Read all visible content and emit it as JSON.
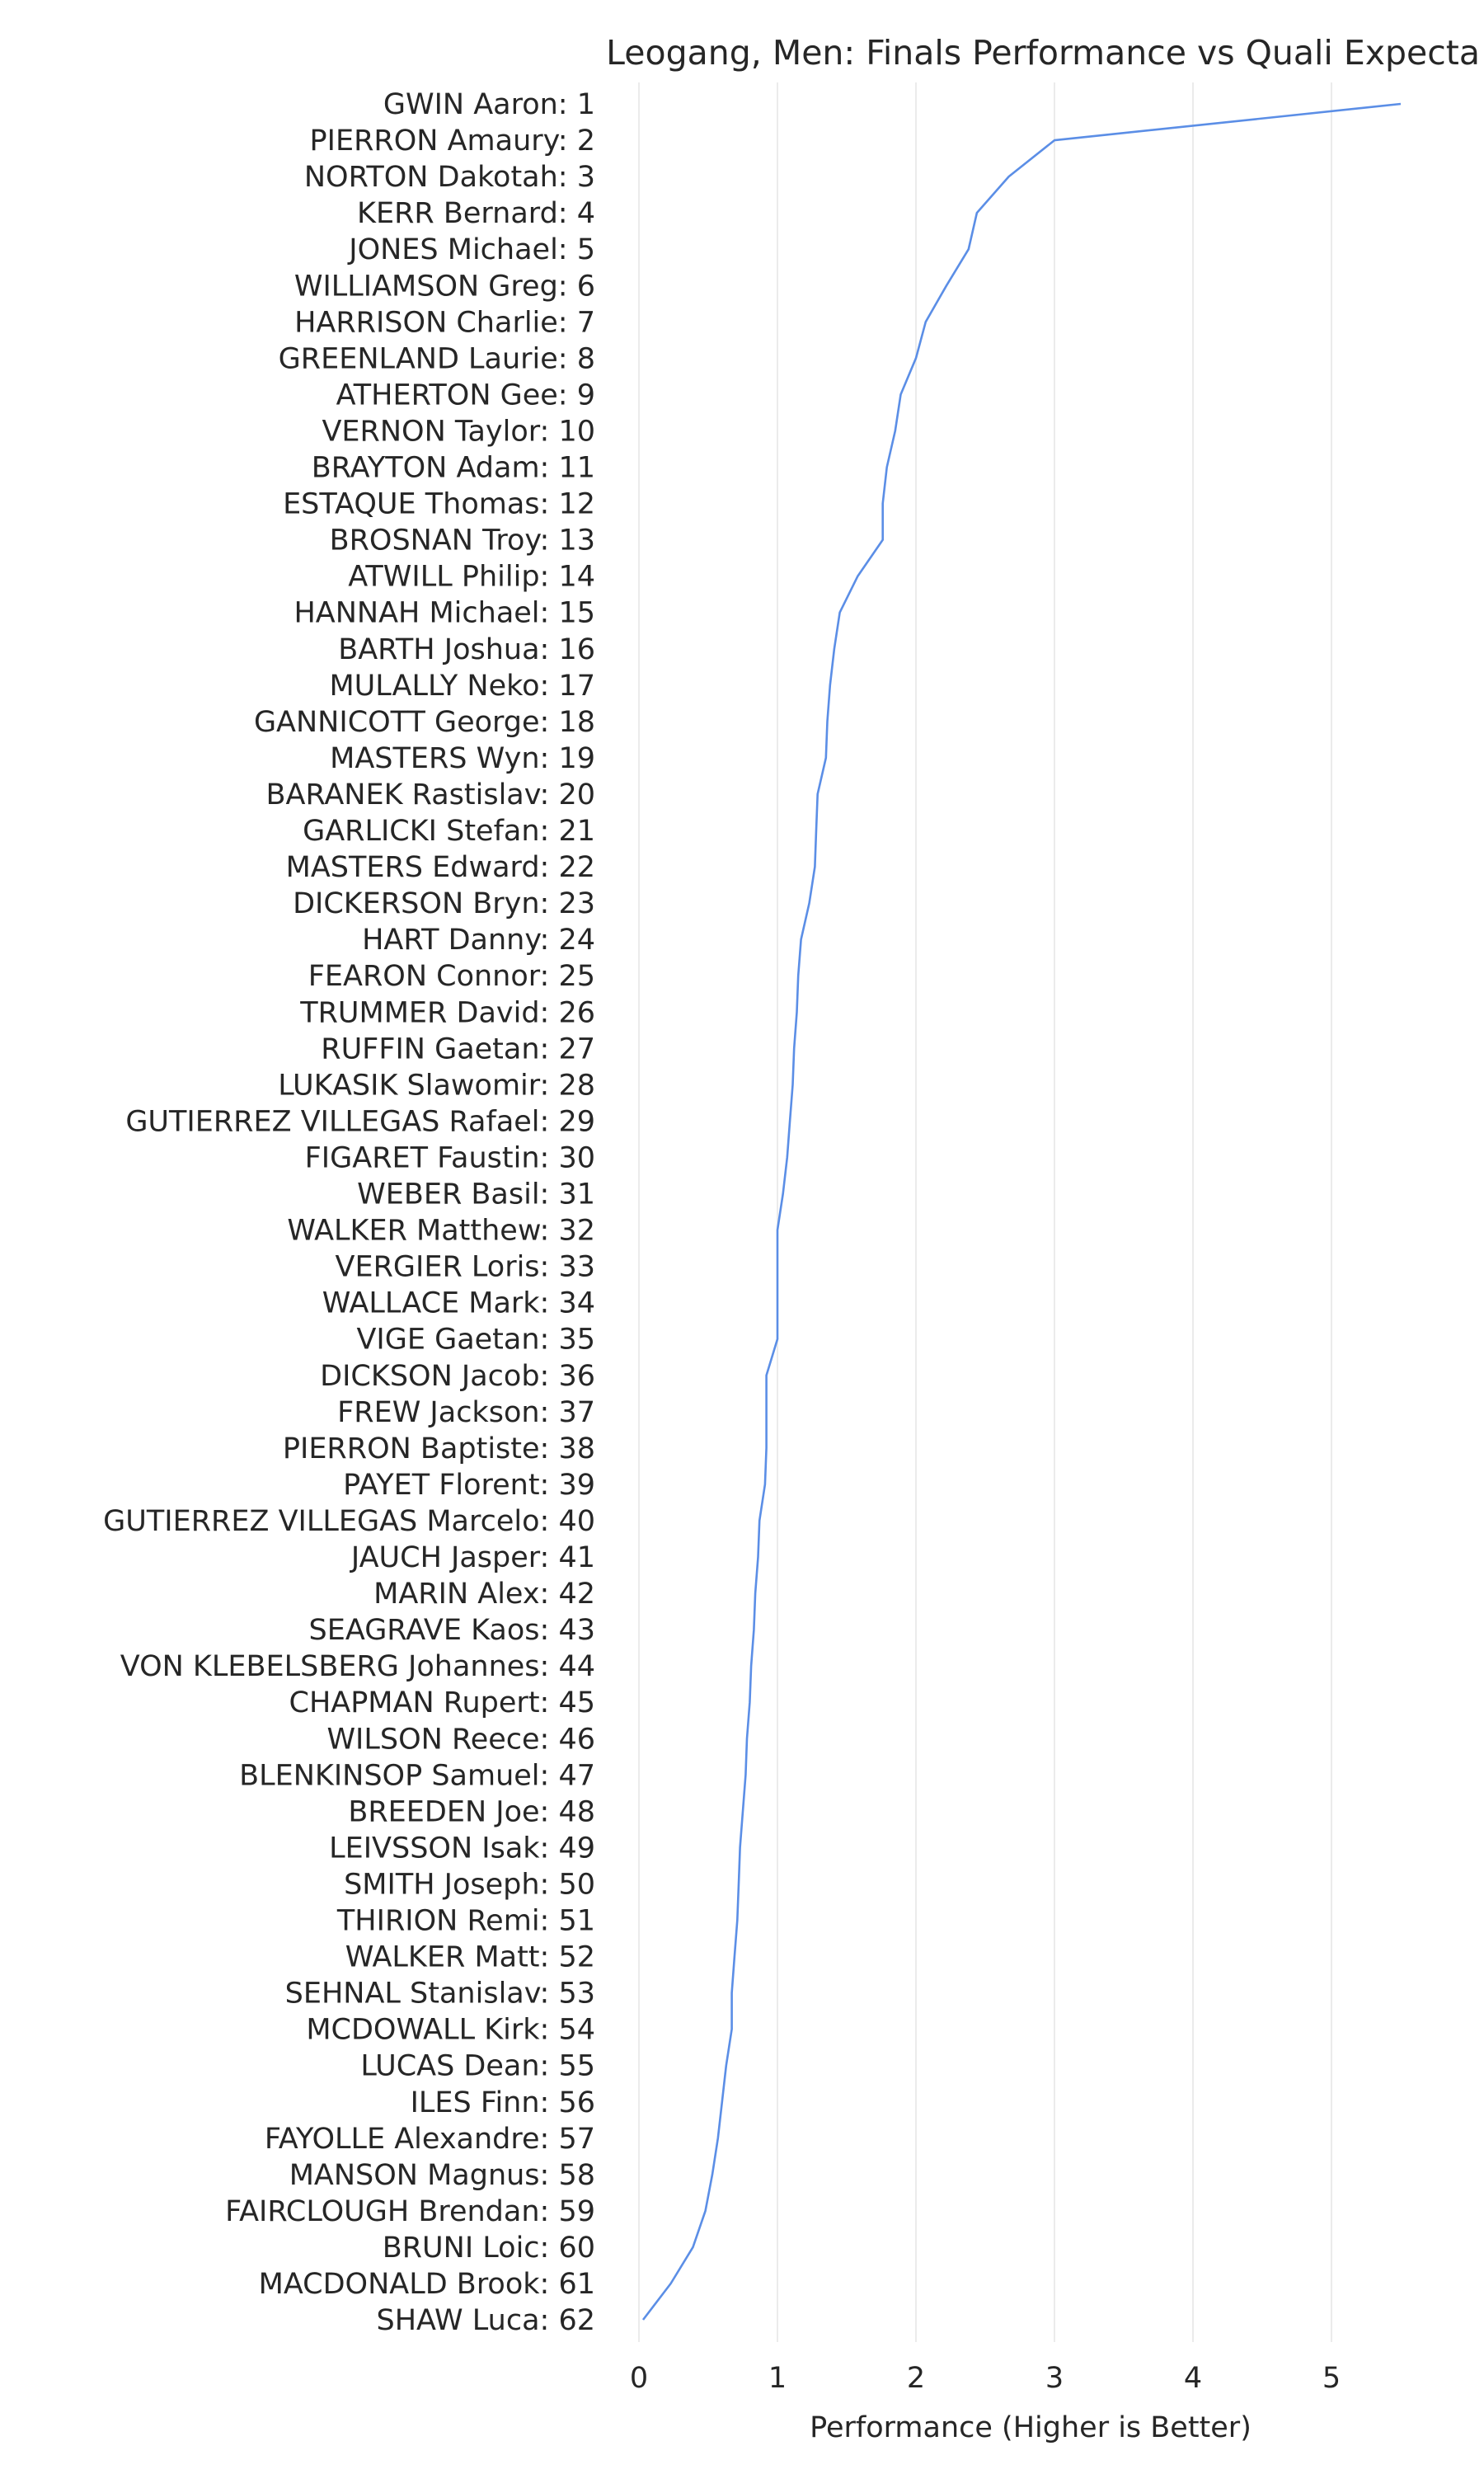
{
  "chart_data": {
    "type": "line",
    "title": "Leogang, Men: Finals Performance vs Quali Expecta",
    "xlabel": "Performance (Higher is Better)",
    "ylabel": "",
    "xlim": [
      0,
      6
    ],
    "x_ticks": [
      0,
      1,
      2,
      3,
      4,
      5
    ],
    "grid": true,
    "line_color": "#5b8ee6",
    "orientation": "horizontal",
    "categories": [
      "GWIN Aaron: 1",
      "PIERRON Amaury: 2",
      "NORTON Dakotah: 3",
      "KERR Bernard: 4",
      "JONES Michael: 5",
      "WILLIAMSON Greg: 6",
      "HARRISON Charlie: 7",
      "GREENLAND Laurie: 8",
      "ATHERTON Gee: 9",
      "VERNON Taylor: 10",
      "BRAYTON Adam: 11",
      "ESTAQUE Thomas: 12",
      "BROSNAN Troy: 13",
      "ATWILL Philip: 14",
      "HANNAH Michael: 15",
      "BARTH Joshua: 16",
      "MULALLY Neko: 17",
      "GANNICOTT George: 18",
      "MASTERS Wyn: 19",
      "BARANEK Rastislav: 20",
      "GARLICKI Stefan: 21",
      "MASTERS Edward: 22",
      "DICKERSON Bryn: 23",
      "HART Danny: 24",
      "FEARON Connor: 25",
      "TRUMMER David: 26",
      "RUFFIN Gaetan: 27",
      "LUKASIK Slawomir: 28",
      "GUTIERREZ VILLEGAS Rafael: 29",
      "FIGARET Faustin: 30",
      "WEBER Basil: 31",
      "WALKER Matthew: 32",
      "VERGIER Loris: 33",
      "WALLACE Mark: 34",
      "VIGE Gaetan: 35",
      "DICKSON Jacob: 36",
      "FREW Jackson: 37",
      "PIERRON Baptiste: 38",
      "PAYET Florent: 39",
      "GUTIERREZ VILLEGAS Marcelo: 40",
      "JAUCH Jasper: 41",
      "MARIN Alex: 42",
      "SEAGRAVE Kaos: 43",
      "VON KLEBELSBERG Johannes: 44",
      "CHAPMAN Rupert: 45",
      "WILSON Reece: 46",
      "BLENKINSOP Samuel: 47",
      "BREEDEN Joe: 48",
      "LEIVSSON Isak: 49",
      "SMITH Joseph: 50",
      "THIRION Remi: 51",
      "WALKER Matt: 52",
      "SEHNAL Stanislav: 53",
      "MCDOWALL Kirk: 54",
      "LUCAS Dean: 55",
      "ILES Finn: 56",
      "FAYOLLE Alexandre: 57",
      "MANSON Magnus: 58",
      "FAIRCLOUGH Brendan: 59",
      "BRUNI Loic: 60",
      "MACDONALD Brook: 61",
      "SHAW Luca: 62"
    ],
    "values": [
      5.5,
      3.0,
      2.67,
      2.44,
      2.38,
      2.22,
      2.07,
      2.0,
      1.89,
      1.85,
      1.79,
      1.76,
      1.76,
      1.58,
      1.45,
      1.41,
      1.38,
      1.36,
      1.35,
      1.29,
      1.28,
      1.27,
      1.23,
      1.17,
      1.15,
      1.14,
      1.12,
      1.11,
      1.09,
      1.07,
      1.04,
      1.0,
      1.0,
      1.0,
      1.0,
      0.92,
      0.92,
      0.92,
      0.91,
      0.87,
      0.86,
      0.84,
      0.83,
      0.81,
      0.8,
      0.78,
      0.77,
      0.75,
      0.73,
      0.72,
      0.71,
      0.69,
      0.67,
      0.67,
      0.63,
      0.6,
      0.57,
      0.53,
      0.48,
      0.39,
      0.23,
      0.03
    ]
  }
}
